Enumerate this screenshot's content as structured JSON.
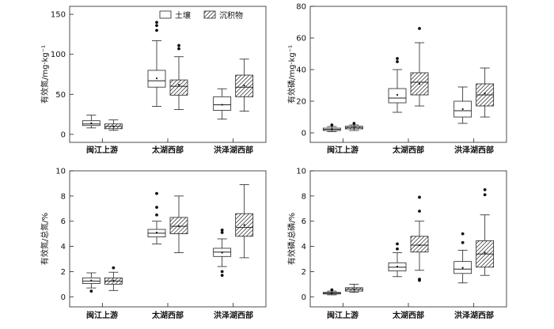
{
  "legend": {
    "items": [
      {
        "label": "土壤",
        "pattern": "plain"
      },
      {
        "label": "沉积物",
        "pattern": "hatch"
      }
    ]
  },
  "chart_data": [
    {
      "type": "box",
      "ylabel": "有效氮/mg·kg⁻¹",
      "ylim": [
        -10,
        160
      ],
      "yticks": [
        0,
        50,
        100,
        150
      ],
      "categories": [
        "闽江上游",
        "太湖西部",
        "洪泽湖西部"
      ],
      "series": [
        {
          "name": "土壤",
          "boxes": [
            {
              "whisker_low": 8,
              "q1": 11,
              "median": 13,
              "q3": 17,
              "whisker_high": 24,
              "mean": 14,
              "outliers": []
            },
            {
              "whisker_low": 35,
              "q1": 59,
              "median": 67,
              "q3": 80,
              "whisker_high": 117,
              "mean": 70,
              "outliers": [
                130,
                136,
                140
              ]
            },
            {
              "whisker_low": 19,
              "q1": 30,
              "median": 37,
              "q3": 47,
              "whisker_high": 57,
              "mean": 37,
              "outliers": []
            }
          ]
        },
        {
          "name": "沉积物",
          "boxes": [
            {
              "whisker_low": 5,
              "q1": 7,
              "median": 10,
              "q3": 13,
              "whisker_high": 18,
              "mean": 10,
              "outliers": []
            },
            {
              "whisker_low": 31,
              "q1": 49,
              "median": 60,
              "q3": 68,
              "whisker_high": 97,
              "mean": 62,
              "outliers": [
                107,
                111
              ]
            },
            {
              "whisker_low": 29,
              "q1": 47,
              "median": 59,
              "q3": 74,
              "whisker_high": 94,
              "mean": 61,
              "outliers": []
            }
          ]
        }
      ]
    },
    {
      "type": "box",
      "ylabel": "有效磷/mg·kg⁻¹",
      "ylim": [
        -6,
        80
      ],
      "yticks": [
        0,
        20,
        40,
        60,
        80
      ],
      "categories": [
        "闽江上游",
        "太湖西部",
        "洪泽湖西部"
      ],
      "series": [
        {
          "name": "土壤",
          "boxes": [
            {
              "whisker_low": 0.8,
              "q1": 1.5,
              "median": 2.2,
              "q3": 3.0,
              "whisker_high": 4.0,
              "mean": 2.3,
              "outliers": [
                5
              ]
            },
            {
              "whisker_low": 13,
              "q1": 19,
              "median": 22,
              "q3": 28,
              "whisker_high": 40,
              "mean": 24,
              "outliers": [
                45,
                47
              ]
            },
            {
              "whisker_low": 6,
              "q1": 10,
              "median": 14,
              "q3": 20,
              "whisker_high": 29,
              "mean": 15,
              "outliers": []
            }
          ]
        },
        {
          "name": "沉积物",
          "boxes": [
            {
              "whisker_low": 1.5,
              "q1": 2.5,
              "median": 3.3,
              "q3": 4.2,
              "whisker_high": 5.0,
              "mean": 3.4,
              "outliers": [
                6
              ]
            },
            {
              "whisker_low": 17,
              "q1": 24,
              "median": 32,
              "q3": 38,
              "whisker_high": 57,
              "mean": 31,
              "outliers": [
                66
              ]
            },
            {
              "whisker_low": 10,
              "q1": 17,
              "median": 24,
              "q3": 31,
              "whisker_high": 41,
              "mean": 25,
              "outliers": []
            }
          ]
        }
      ]
    },
    {
      "type": "box",
      "ylabel": "有效氮/总氮/%",
      "ylim": [
        -0.8,
        10
      ],
      "yticks": [
        0,
        2,
        4,
        6,
        8,
        10
      ],
      "categories": [
        "闽江上游",
        "太湖西部",
        "洪泽湖西部"
      ],
      "series": [
        {
          "name": "土壤",
          "boxes": [
            {
              "whisker_low": 0.7,
              "q1": 1.05,
              "median": 1.25,
              "q3": 1.5,
              "whisker_high": 1.9,
              "mean": 1.3,
              "outliers": [
                0.45
              ]
            },
            {
              "whisker_low": 4.2,
              "q1": 4.75,
              "median": 5.05,
              "q3": 5.35,
              "whisker_high": 6.0,
              "mean": 5.1,
              "outliers": [
                6.5,
                7.1,
                8.2
              ]
            },
            {
              "whisker_low": 2.4,
              "q1": 3.2,
              "median": 3.55,
              "q3": 3.85,
              "whisker_high": 4.6,
              "mean": 3.5,
              "outliers": [
                1.7,
                2.0,
                5.1,
                5.3
              ]
            }
          ]
        },
        {
          "name": "沉积物",
          "boxes": [
            {
              "whisker_low": 0.5,
              "q1": 1.0,
              "median": 1.25,
              "q3": 1.5,
              "whisker_high": 1.95,
              "mean": 1.3,
              "outliers": [
                2.3
              ]
            },
            {
              "whisker_low": 3.5,
              "q1": 5.0,
              "median": 5.6,
              "q3": 6.3,
              "whisker_high": 8.0,
              "mean": 5.6,
              "outliers": []
            },
            {
              "whisker_low": 3.1,
              "q1": 4.8,
              "median": 5.5,
              "q3": 6.6,
              "whisker_high": 8.9,
              "mean": 5.7,
              "outliers": []
            }
          ]
        }
      ]
    },
    {
      "type": "box",
      "ylabel": "有效磷/总磷/%",
      "ylim": [
        -0.8,
        10
      ],
      "yticks": [
        0,
        2,
        4,
        6,
        8,
        10
      ],
      "categories": [
        "闽江上游",
        "太湖西部",
        "洪泽湖西部"
      ],
      "series": [
        {
          "name": "土壤",
          "boxes": [
            {
              "whisker_low": 0.15,
              "q1": 0.22,
              "median": 0.28,
              "q3": 0.35,
              "whisker_high": 0.45,
              "mean": 0.3,
              "outliers": [
                0.55
              ]
            },
            {
              "whisker_low": 1.6,
              "q1": 2.05,
              "median": 2.35,
              "q3": 2.7,
              "whisker_high": 3.5,
              "mean": 2.4,
              "outliers": [
                3.8,
                4.2
              ]
            },
            {
              "whisker_low": 1.1,
              "q1": 1.85,
              "median": 2.2,
              "q3": 2.8,
              "whisker_high": 3.7,
              "mean": 2.3,
              "outliers": [
                4.3,
                5.0
              ]
            }
          ]
        },
        {
          "name": "沉积物",
          "boxes": [
            {
              "whisker_low": 0.35,
              "q1": 0.45,
              "median": 0.6,
              "q3": 0.72,
              "whisker_high": 1.0,
              "mean": 0.6,
              "outliers": []
            },
            {
              "whisker_low": 2.1,
              "q1": 3.55,
              "median": 4.1,
              "q3": 4.8,
              "whisker_high": 6.0,
              "mean": 4.1,
              "outliers": [
                1.3,
                1.4,
                6.8,
                7.9
              ]
            },
            {
              "whisker_low": 1.7,
              "q1": 2.35,
              "median": 3.4,
              "q3": 4.45,
              "whisker_high": 6.5,
              "mean": 3.5,
              "outliers": [
                8.1,
                8.5
              ]
            }
          ]
        }
      ]
    }
  ]
}
